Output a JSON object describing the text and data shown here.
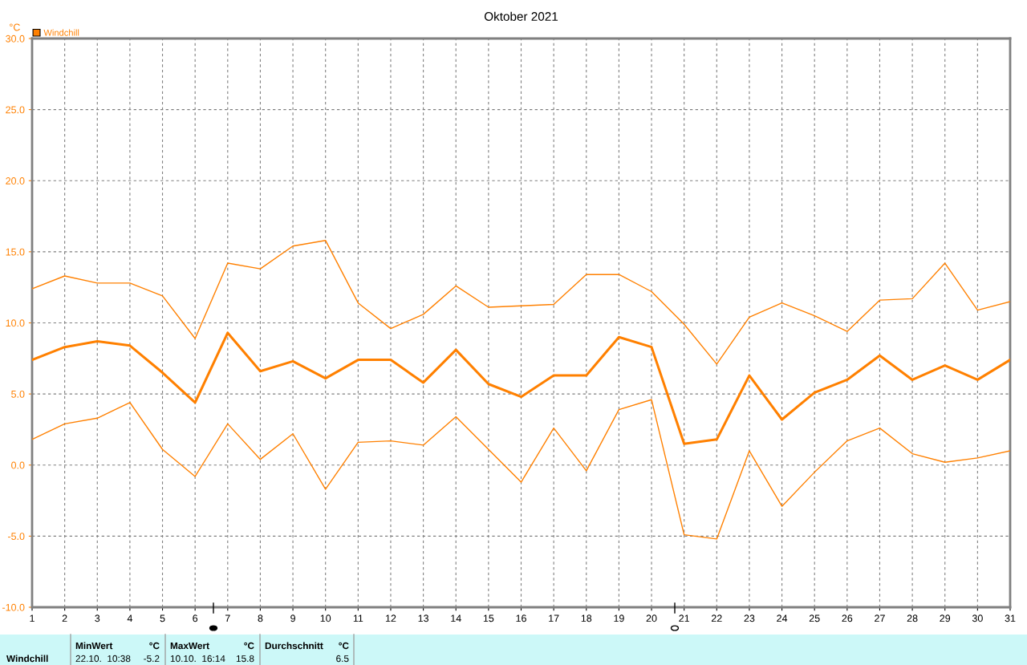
{
  "chart_data": {
    "type": "line",
    "title": "Oktober 2021",
    "ylabel": "°C",
    "x": [
      1,
      2,
      3,
      4,
      5,
      6,
      7,
      8,
      9,
      10,
      11,
      12,
      13,
      14,
      15,
      16,
      17,
      18,
      19,
      20,
      21,
      22,
      23,
      24,
      25,
      26,
      27,
      28,
      29,
      30,
      31
    ],
    "series": [
      {
        "color": "#ff8000",
        "values": [
          12.4,
          13.3,
          12.8,
          12.8,
          11.9,
          8.9,
          14.2,
          13.8,
          15.4,
          15.8,
          11.4,
          9.6,
          10.6,
          12.6,
          11.1,
          11.2,
          11.3,
          13.4,
          13.4,
          12.2,
          9.9,
          7.1,
          10.4,
          11.4,
          10.5,
          9.4,
          11.6,
          11.7,
          14.2,
          10.9,
          11.5
        ]
      },
      {
        "name": "Windchill",
        "color": "#ff8000",
        "values": [
          7.4,
          8.3,
          8.7,
          8.4,
          6.5,
          4.4,
          9.3,
          6.6,
          7.3,
          6.1,
          7.4,
          7.4,
          5.8,
          8.1,
          5.7,
          4.8,
          6.3,
          6.3,
          9.0,
          8.3,
          1.5,
          1.8,
          6.3,
          3.2,
          5.1,
          6.0,
          7.7,
          6.0,
          7.0,
          6.0,
          7.4
        ]
      },
      {
        "color": "#ff8000",
        "values": [
          1.8,
          2.9,
          3.3,
          4.4,
          1.1,
          -0.8,
          2.9,
          0.4,
          2.2,
          -1.7,
          1.6,
          1.7,
          1.4,
          3.4,
          1.1,
          -1.2,
          2.6,
          -0.4,
          3.9,
          4.6,
          -4.9,
          -5.2,
          1.0,
          -2.9,
          -0.5,
          1.7,
          2.6,
          0.8,
          0.2,
          0.5,
          1.0
        ]
      }
    ],
    "xlim": [
      1,
      31
    ],
    "xticks": [
      1,
      2,
      3,
      4,
      5,
      6,
      7,
      8,
      9,
      10,
      11,
      12,
      13,
      14,
      15,
      16,
      17,
      18,
      19,
      20,
      21,
      22,
      23,
      24,
      25,
      26,
      27,
      28,
      29,
      30,
      31
    ],
    "ylim": [
      -10,
      30
    ],
    "yticks": [
      {
        "value": -10,
        "label": "-10.0"
      },
      {
        "value": -5,
        "label": "-5.0"
      },
      {
        "value": 0,
        "label": "0.0"
      },
      {
        "value": 5,
        "label": "5.0"
      },
      {
        "value": 10,
        "label": "10.0"
      },
      {
        "value": 15,
        "label": "15.0"
      },
      {
        "value": 20,
        "label": "20.0"
      },
      {
        "value": 25,
        "label": "25.0"
      },
      {
        "value": 30,
        "label": "30.0"
      }
    ],
    "grid": true,
    "legend": "top left",
    "line_style": "solid",
    "marker": "none",
    "annotations": [
      "Windchill",
      "MinWert",
      "°C",
      "22.10.  10:38",
      "-5.2",
      "MaxWert",
      "°C",
      "10.10.  16:14",
      "15.8",
      "Durchschnitt",
      "°C",
      "6.5"
    ]
  }
}
